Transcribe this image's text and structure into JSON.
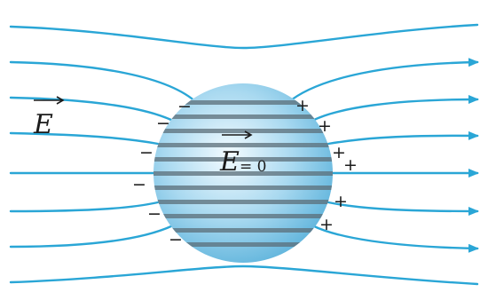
{
  "colors": {
    "field_line": "#2aa6d6",
    "sphere_light": "#f3fbff",
    "sphere_mid": "#a9d9f0",
    "sphere_dark": "#5fb4dc",
    "strip": "#5b6d78",
    "charge_text": "#1b1b1b"
  },
  "labels": {
    "external_field": "E",
    "internal_field": "E",
    "internal_field_value": "= 0"
  },
  "charges": {
    "negative_symbol": "−",
    "positive_symbol": "+"
  },
  "icons": {
    "field_arrowhead": "arrowhead-icon",
    "vector_arrow": "vector-arrow-icon"
  }
}
